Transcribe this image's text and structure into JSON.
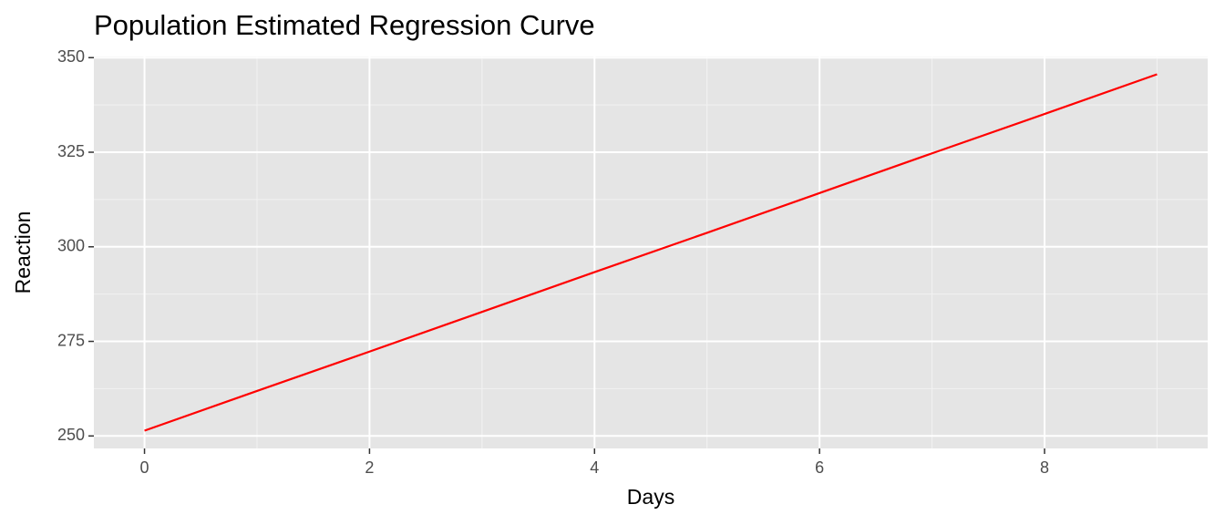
{
  "chart_data": {
    "type": "line",
    "title": "Population Estimated Regression Curve",
    "x_label": "Days",
    "y_label": "Reaction",
    "x": [
      0,
      1,
      2,
      3,
      4,
      5,
      6,
      7,
      8,
      9
    ],
    "series": [
      {
        "name": "Reaction",
        "color": "#ff0000",
        "values": [
          251.4,
          261.9,
          272.3,
          282.8,
          293.3,
          303.7,
          314.2,
          324.7,
          335.1,
          345.6
        ]
      }
    ],
    "xlim": [
      -0.45,
      9.45
    ],
    "xticks": [
      0,
      2,
      4,
      6,
      8
    ],
    "ylim": [
      246.7,
      350.3
    ],
    "yticks": [
      250,
      275,
      300,
      325,
      350
    ],
    "grid": true
  }
}
